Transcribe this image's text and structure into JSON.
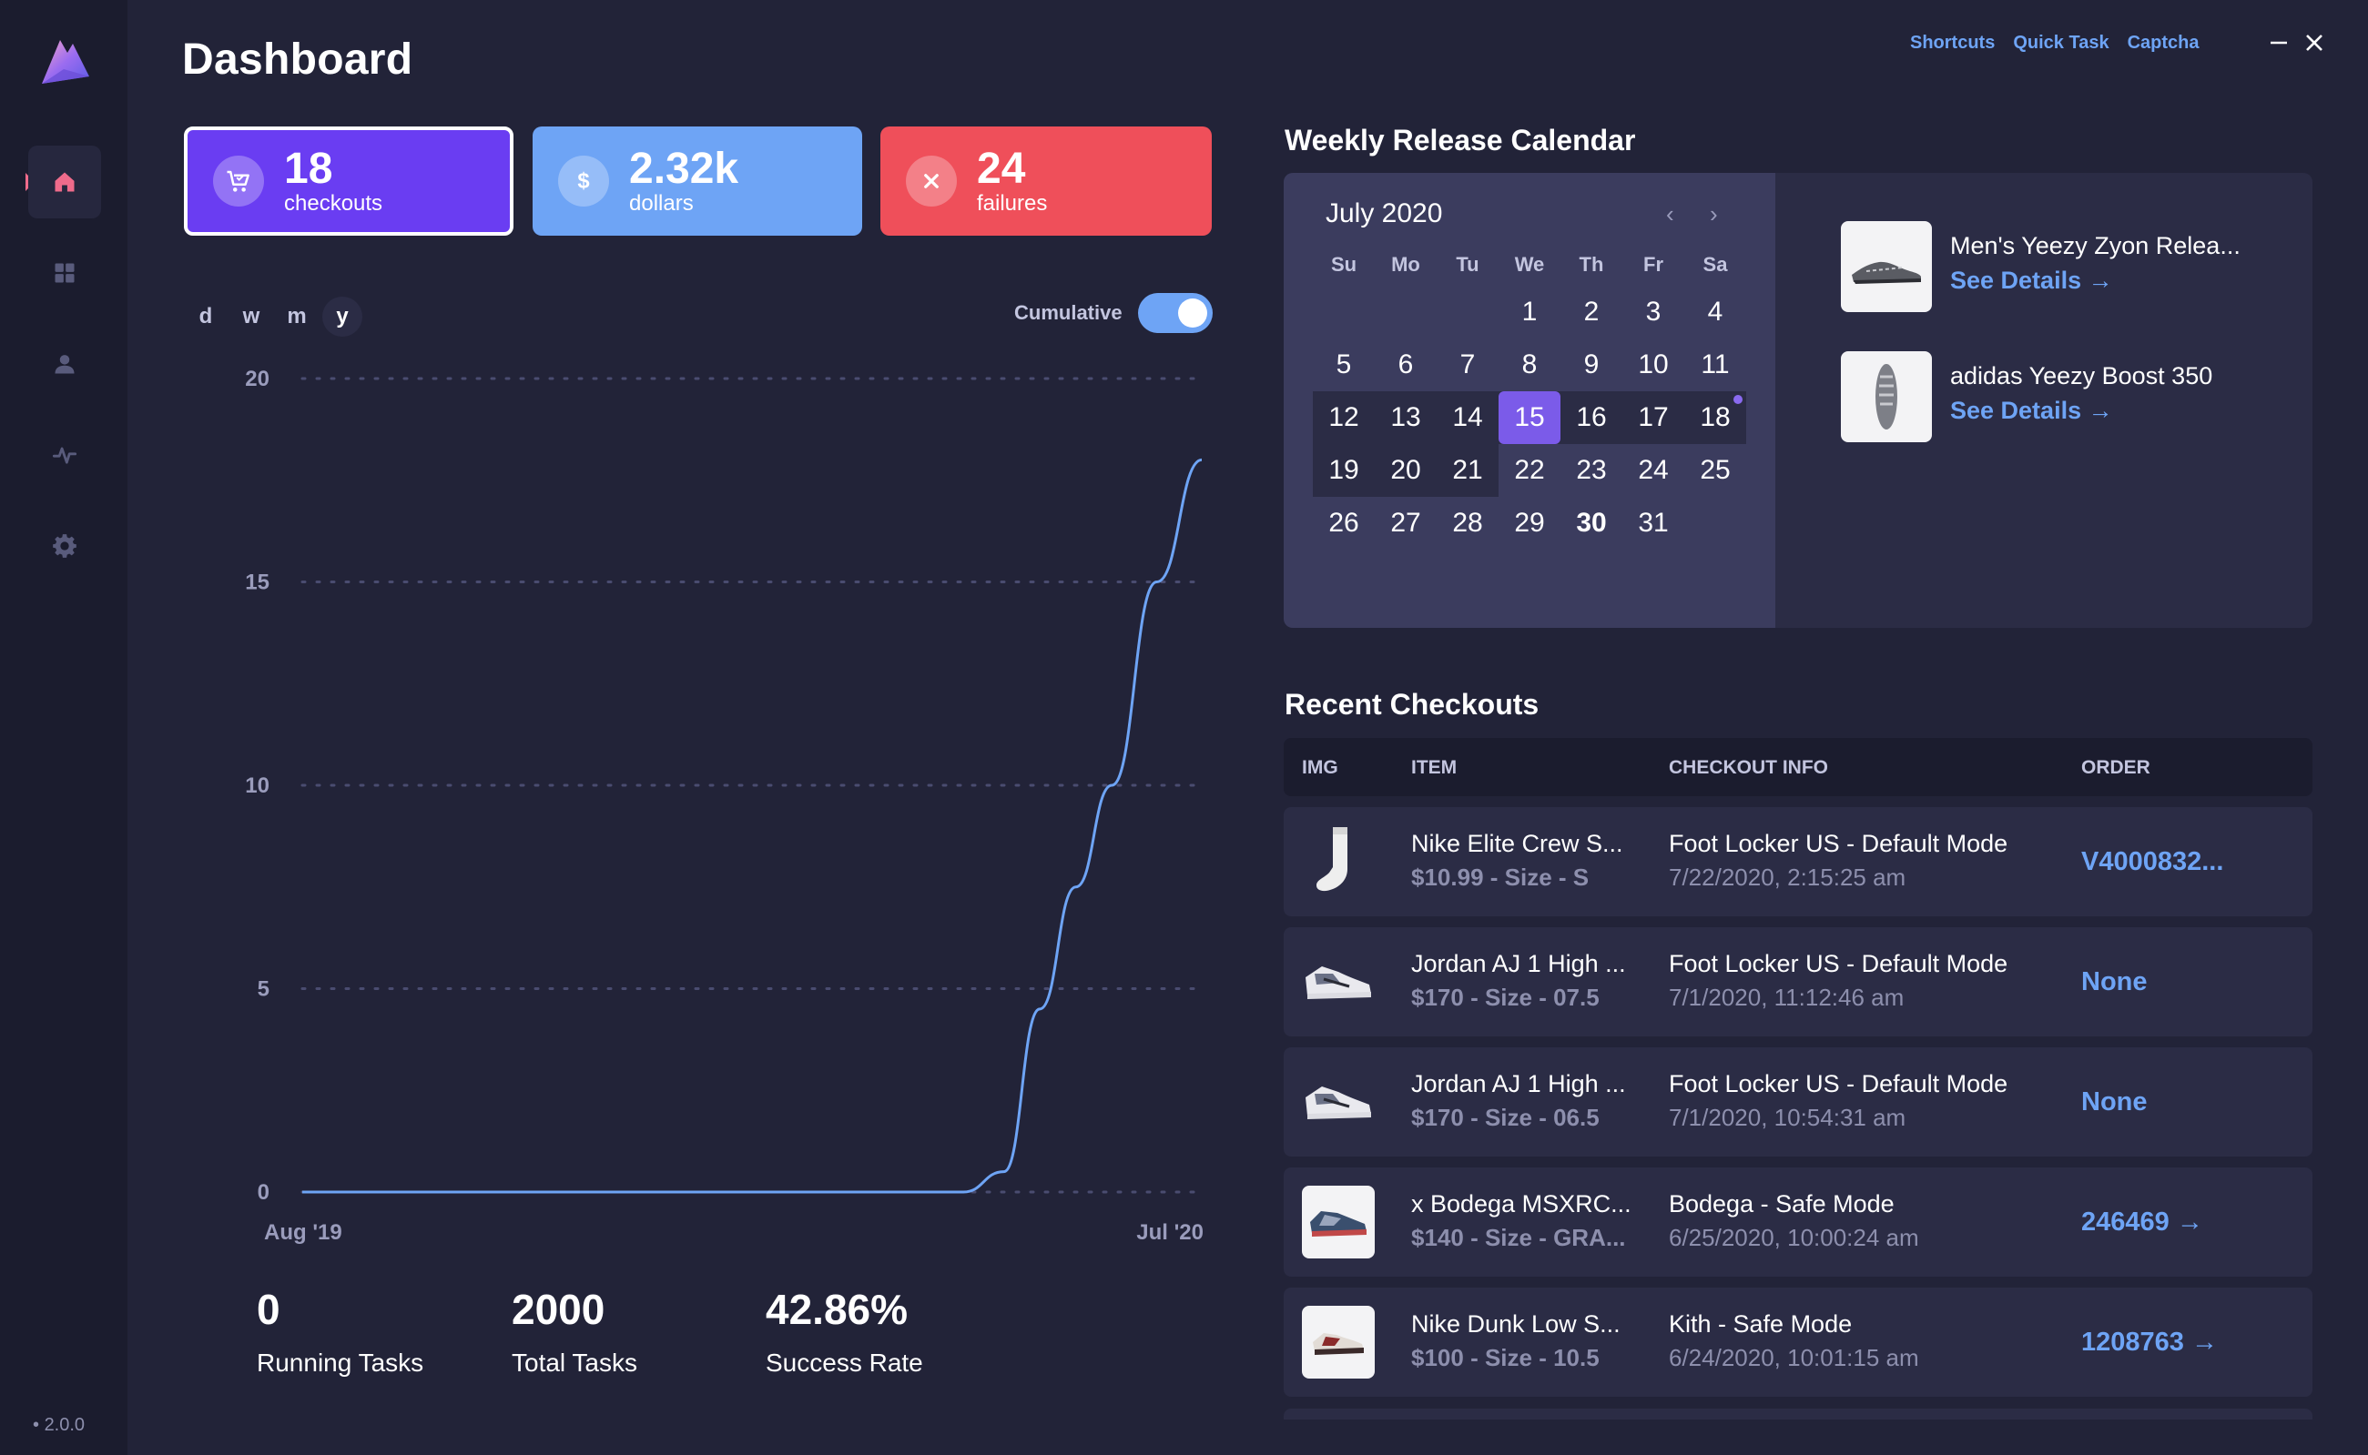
{
  "app": {
    "version": "2.0.0",
    "page_title": "Dashboard"
  },
  "sidebar": {
    "items": [
      {
        "name": "home-icon",
        "active": true
      },
      {
        "name": "grid-icon",
        "active": false
      },
      {
        "name": "user-icon",
        "active": false
      },
      {
        "name": "activity-icon",
        "active": false
      },
      {
        "name": "gear-icon",
        "active": false
      }
    ]
  },
  "top_links": [
    "Shortcuts",
    "Quick Task",
    "Captcha"
  ],
  "stats": [
    {
      "value": "18",
      "label": "checkouts",
      "icon": "cart-icon",
      "color": "#6a3df2"
    },
    {
      "value": "2.32k",
      "label": "dollars",
      "icon": "dollar-icon",
      "color": "#6ea4f5"
    },
    {
      "value": "24",
      "label": "failures",
      "icon": "close-icon",
      "color": "#ef4f5a"
    }
  ],
  "range_tabs": {
    "items": [
      "d",
      "w",
      "m",
      "y"
    ],
    "active": "y"
  },
  "cumulative": {
    "label": "Cumulative",
    "on": true
  },
  "chart_data": {
    "type": "line",
    "x_labels": [
      "Aug '19",
      "Jul '20"
    ],
    "y_ticks": [
      0,
      5,
      10,
      15,
      20
    ],
    "ylim": [
      0,
      20
    ],
    "grid": true,
    "line_color": "#6ea4f5",
    "series": [
      {
        "x": [
          "Aug '19",
          "Sep '19",
          "Oct '19",
          "Nov '19",
          "Dec '19",
          "Jan '20",
          "Feb '20",
          "Mar '20",
          "Apr '20",
          "May '20",
          "May '20",
          "Jun '20",
          "Jun '20",
          "Jun '20",
          "Jul '20",
          "Jul '20"
        ],
        "values": [
          0,
          0,
          0,
          0,
          0,
          0,
          0,
          0,
          0,
          0,
          0.5,
          4.5,
          7.5,
          10,
          15,
          18
        ]
      }
    ]
  },
  "bottom_stats": [
    {
      "value": "0",
      "label": "Running Tasks"
    },
    {
      "value": "2000",
      "label": "Total Tasks"
    },
    {
      "value": "42.86%",
      "label": "Success Rate"
    }
  ],
  "calendar": {
    "section_title": "Weekly Release Calendar",
    "month": "July 2020",
    "nav_prev": "‹",
    "nav_next": "›",
    "day_headers": [
      "Su",
      "Mo",
      "Tu",
      "We",
      "Th",
      "Fr",
      "Sa"
    ],
    "weeks": [
      [
        "",
        "",
        "",
        "1",
        "2",
        "3",
        "4"
      ],
      [
        "5",
        "6",
        "7",
        "8",
        "9",
        "10",
        "11"
      ],
      [
        "12",
        "13",
        "14",
        "15",
        "16",
        "17",
        "18"
      ],
      [
        "19",
        "20",
        "21",
        "22",
        "23",
        "24",
        "25"
      ],
      [
        "26",
        "27",
        "28",
        "29",
        "30",
        "31",
        ""
      ]
    ],
    "selected_day": "15",
    "today": "30",
    "release_dot_day": "18",
    "releases": [
      {
        "name": "Men's Yeezy Zyon Relea...",
        "link": "See Details →"
      },
      {
        "name": "adidas Yeezy Boost 350",
        "link": "See Details →"
      }
    ]
  },
  "checkouts": {
    "section_title": "Recent Checkouts",
    "columns": [
      "IMG",
      "ITEM",
      "CHECKOUT INFO",
      "ORDER"
    ],
    "rows": [
      {
        "item": "Nike Elite Crew S...",
        "sub": "$10.99 - Size - S",
        "store": "Foot Locker US - Default Mode",
        "time": "7/22/2020, 2:15:25 am",
        "order": "V4000832...",
        "thumb": "sock-icon"
      },
      {
        "item": "Jordan AJ 1 High ...",
        "sub": "$170 - Size - 07.5",
        "store": "Foot Locker US - Default Mode",
        "time": "7/1/2020, 11:12:46 am",
        "order": "None",
        "thumb": "sneaker-icon"
      },
      {
        "item": "Jordan AJ 1 High ...",
        "sub": "$170 - Size - 06.5",
        "store": "Foot Locker US - Default Mode",
        "time": "7/1/2020, 10:54:31 am",
        "order": "None",
        "thumb": "sneaker-icon"
      },
      {
        "item": "x Bodega MSXRC...",
        "sub": "$140 - Size - GRA...",
        "store": "Bodega - Safe Mode",
        "time": "6/25/2020, 10:00:24 am",
        "order": "246469 →",
        "thumb": "sneaker-icon"
      },
      {
        "item": "Nike Dunk Low S...",
        "sub": "$100 - Size - 10.5",
        "store": "Kith - Safe Mode",
        "time": "6/24/2020, 10:01:15 am",
        "order": "1208763 →",
        "thumb": "sneaker-icon"
      }
    ]
  }
}
